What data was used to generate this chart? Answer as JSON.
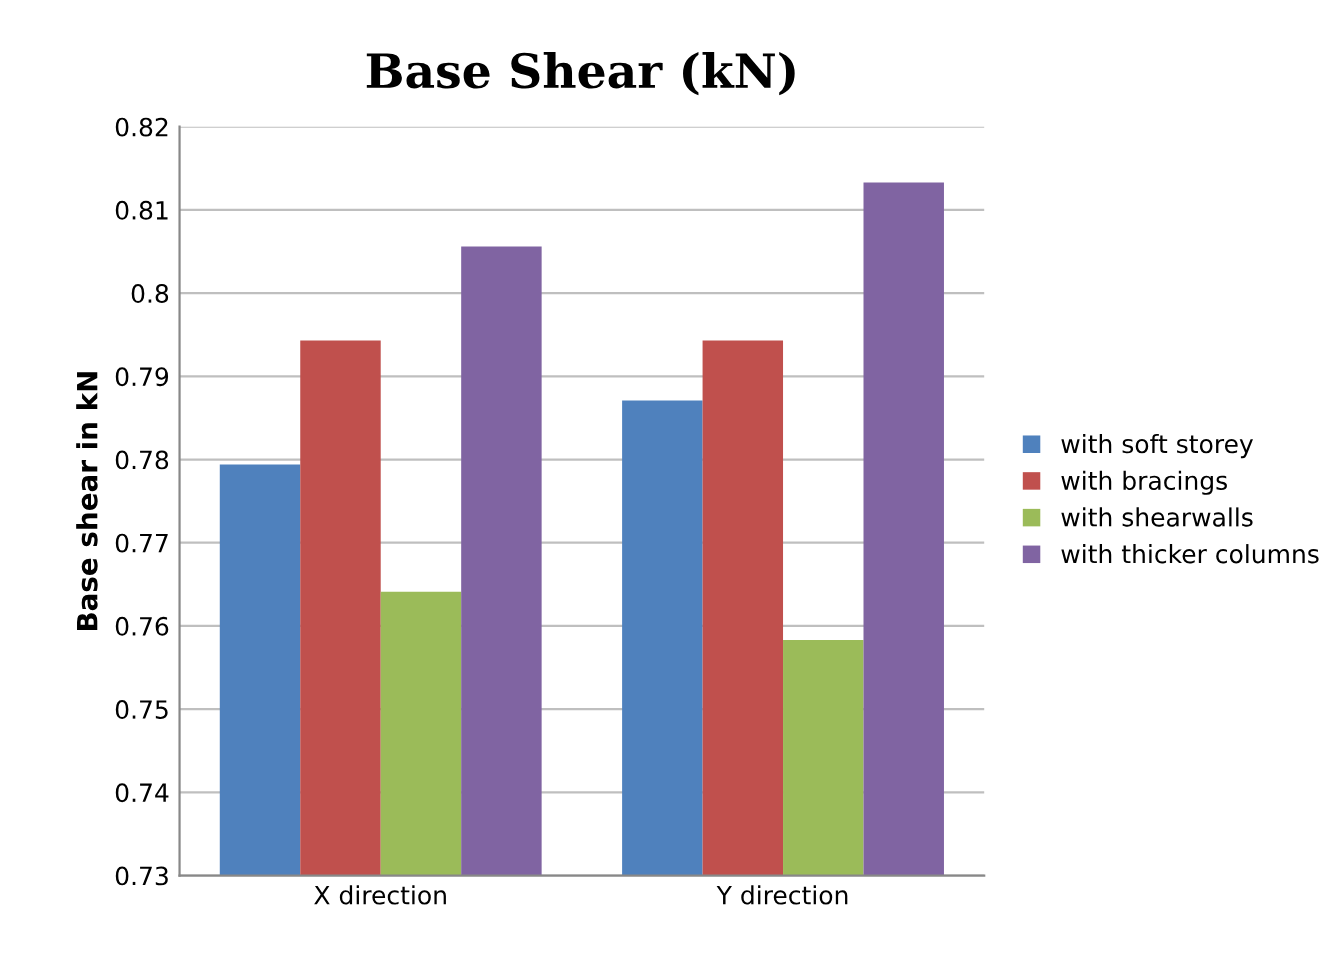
{
  "chart_data": {
    "type": "bar",
    "title": "Base Shear (kN)",
    "ylabel": "Base shear in kN",
    "categories": [
      "X direction",
      "Y direction"
    ],
    "series": [
      {
        "name": "with soft storey",
        "color": "#4f81bd",
        "values": [
          0.7794,
          0.7871
        ]
      },
      {
        "name": "with bracings",
        "color": "#c0504d",
        "values": [
          0.7943,
          0.7943
        ]
      },
      {
        "name": "with shearwalls",
        "color": "#9bbb59",
        "values": [
          0.7641,
          0.7583
        ]
      },
      {
        "name": "with thicker columns",
        "color": "#8064a2",
        "values": [
          0.8056,
          0.8133
        ]
      }
    ],
    "ylim": [
      0.73,
      0.82
    ],
    "yticks": [
      0.73,
      0.74,
      0.75,
      0.76,
      0.77,
      0.78,
      0.79,
      {
        "value": 0.8,
        "label": "0.8"
      },
      0.81,
      0.82
    ],
    "grid": "y",
    "legend": "right"
  }
}
